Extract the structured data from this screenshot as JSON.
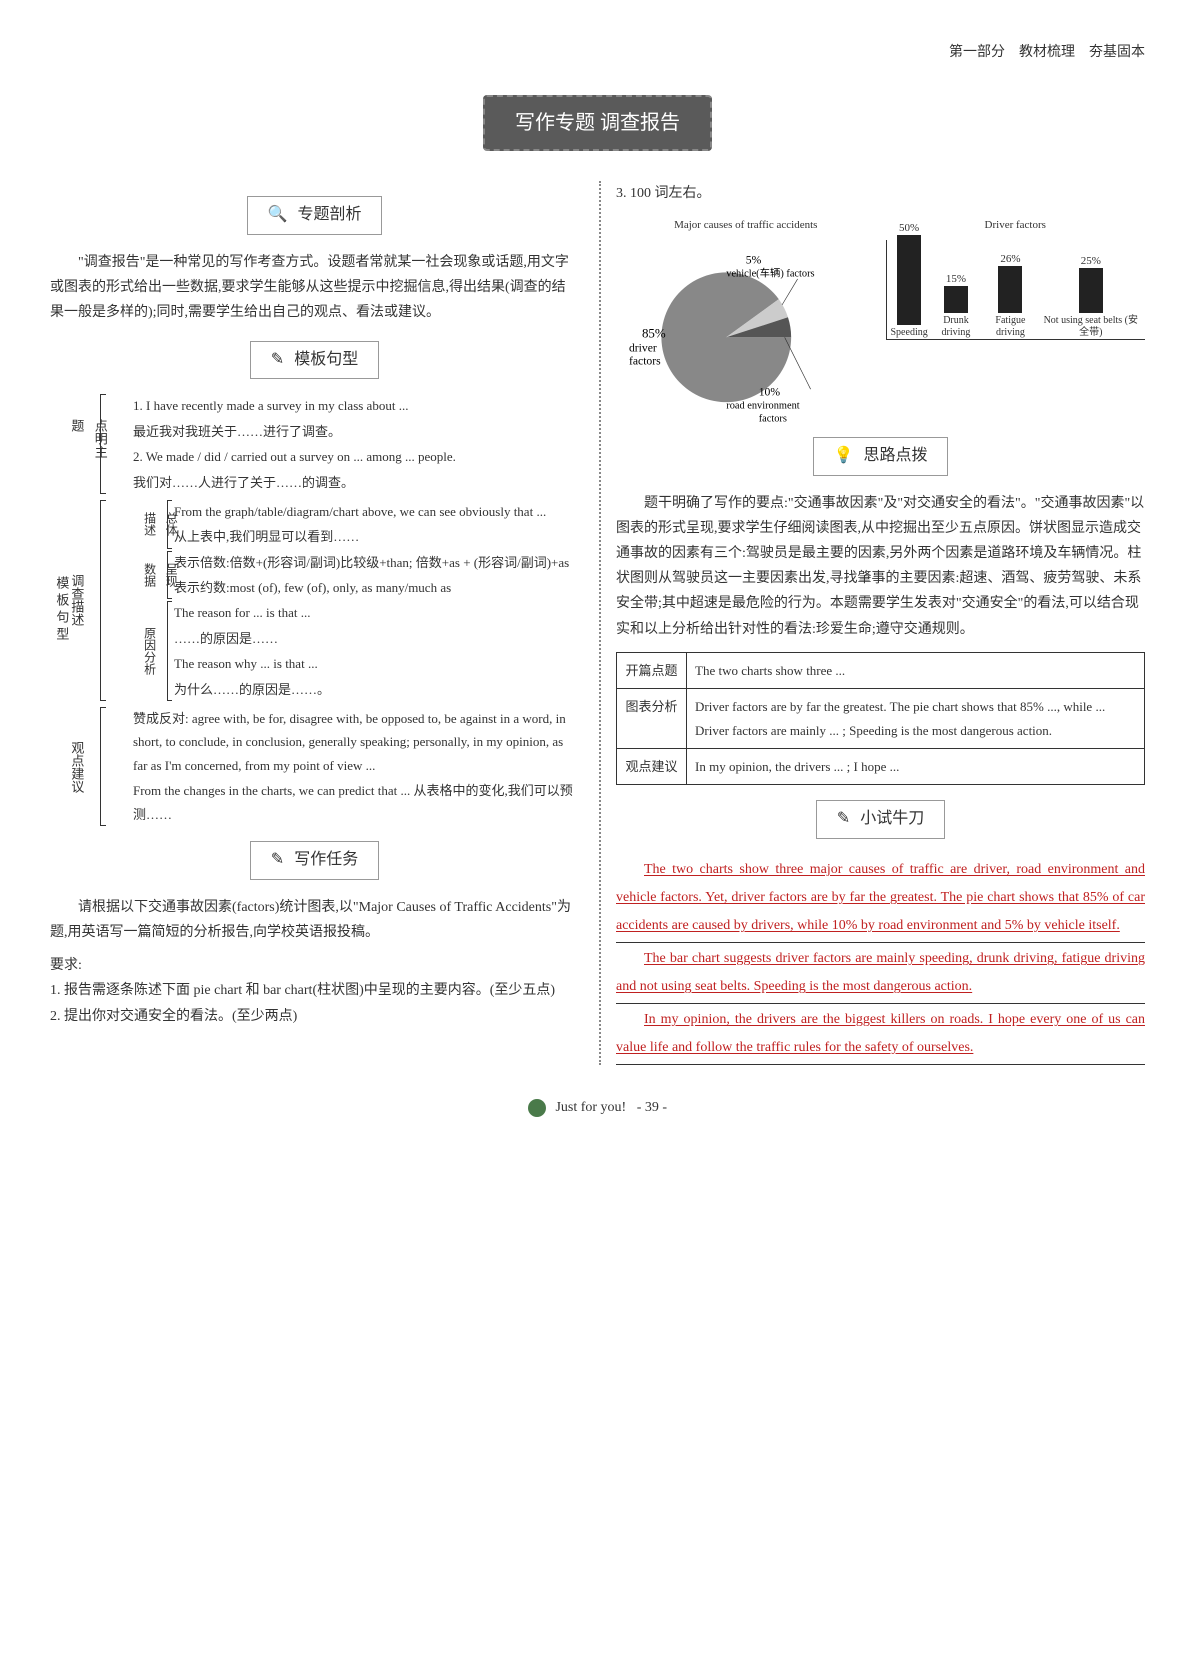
{
  "header": {
    "part": "第一部分",
    "section": "教材梳理",
    "subsection": "夯基固本"
  },
  "title": "写作专题 调查报告",
  "left": {
    "analysis_label": "专题剖析",
    "analysis_icon": "🔍",
    "analysis_text": "\"调查报告\"是一种常见的写作考查方式。设题者常就某一社会现象或话题,用文字或图表的形式给出一些数据,要求学生能够从这些提示中挖掘信息,得出结果(调查的结果一般是多样的);同时,需要学生给出自己的观点、看法或建议。",
    "template_label": "模板句型",
    "template_icon": "✎",
    "bracket_main_label": "模板句型",
    "groups": {
      "topic": {
        "label": "点明主题",
        "items": [
          "1. I have recently made a survey in my class about ...",
          "最近我对我班关于……进行了调查。",
          "2. We made / did / carried out a survey on ... among ... people.",
          "我们对……人进行了关于……的调查。"
        ]
      },
      "survey": {
        "label": "调查描述",
        "sub1": {
          "label": "总体描述",
          "items": [
            "From the graph/table/diagram/chart above, we can see obviously that ...",
            "从上表中,我们明显可以看到……"
          ]
        },
        "sub2": {
          "label": "呈现数据",
          "items": [
            "表示倍数:倍数+(形容词/副词)比较级+than; 倍数+as + (形容词/副词)+as",
            "表示约数:most (of), few (of), only, as many/much as"
          ]
        },
        "sub3": {
          "label": "原因分析",
          "items": [
            "The reason for ... is that ...",
            "……的原因是……",
            "The reason why ... is that ...",
            "为什么……的原因是……。"
          ]
        }
      },
      "opinion": {
        "label": "观点建议",
        "items": [
          "赞成反对: agree with, be for, disagree with, be opposed to, be against in a word, in short, to conclude, in conclusion, generally speaking; personally, in my opinion, as far as I'm concerned, from my point of view ...",
          "From the changes in the charts, we can predict that ... 从表格中的变化,我们可以预测……"
        ]
      }
    },
    "task_label": "写作任务",
    "task_icon": "✎",
    "task_intro": "请根据以下交通事故因素(factors)统计图表,以\"Major Causes of Traffic Accidents\"为题,用英语写一篇简短的分析报告,向学校英语报投稿。",
    "task_req_label": "要求:",
    "task_req1": "1. 报告需逐条陈述下面 pie chart 和 bar chart(柱状图)中呈现的主要内容。(至少五点)",
    "task_req2": "2. 提出你对交通安全的看法。(至少两点)"
  },
  "right": {
    "req3": "3. 100 词左右。",
    "pie_chart": {
      "title": "Major causes of traffic accidents",
      "slices": [
        {
          "label": "driver factors",
          "value": 85,
          "color": "#888888"
        },
        {
          "label": "road environment factors",
          "value": 10,
          "color": "#cccccc"
        },
        {
          "label": "vehicle(车辆) factors",
          "value": 5,
          "color": "#555555"
        }
      ],
      "label_driver": "85% driver factors",
      "label_road": "10% road environment factors",
      "label_vehicle": "5% vehicle(车辆) factors"
    },
    "bar_chart": {
      "title": "Driver factors",
      "ymax": 50,
      "bars": [
        {
          "label": "Speeding",
          "value": 50
        },
        {
          "label": "Drunk driving",
          "value": 15
        },
        {
          "label": "Fatigue driving",
          "value": 26
        },
        {
          "label": "Not using seat belts (安全带)",
          "value": 25
        }
      ],
      "bar_color": "#222222"
    },
    "tips_label": "思路点拨",
    "tips_icon": "💡",
    "tips_text": "题干明确了写作的要点:\"交通事故因素\"及\"对交通安全的看法\"。\"交通事故因素\"以图表的形式呈现,要求学生仔细阅读图表,从中挖掘出至少五点原因。饼状图显示造成交通事故的因素有三个:驾驶员是最主要的因素,另外两个因素是道路环境及车辆情况。柱状图则从驾驶员这一主要因素出发,寻找肇事的主要因素:超速、酒驾、疲劳驾驶、未系安全带;其中超速是最危险的行为。本题需要学生发表对\"交通安全\"的看法,可以结合现实和以上分析给出针对性的看法:珍爱生命;遵守交通规则。",
    "outline": {
      "row1_label": "开篇点题",
      "row1_text": "The two charts show three ...",
      "row2_label": "图表分析",
      "row2_text1": "Driver factors are by far the greatest. The pie chart shows that 85% ..., while ...",
      "row2_text2": "Driver factors are mainly ... ; Speeding is the most dangerous action.",
      "row3_label": "观点建议",
      "row3_text": "In my opinion, the drivers ... ; I hope ..."
    },
    "practice_label": "小试牛刀",
    "practice_icon": "✎",
    "essay": {
      "p1": "The two charts show three major causes of traffic are driver, road environment and vehicle factors. Yet, driver factors are by far the greatest. The pie chart shows that 85% of car accidents are caused by drivers, while 10% by road environment and 5% by vehicle itself.",
      "p2": "The bar chart suggests driver factors are mainly speeding, drunk driving, fatigue driving and not using seat belts. Speeding is the most dangerous action.",
      "p3": "In my opinion, the drivers are the biggest killers on roads. I hope every one of us can value life and follow the traffic rules for the safety of ourselves."
    }
  },
  "footer": {
    "text": "Just for you!",
    "page": "- 39 -"
  }
}
